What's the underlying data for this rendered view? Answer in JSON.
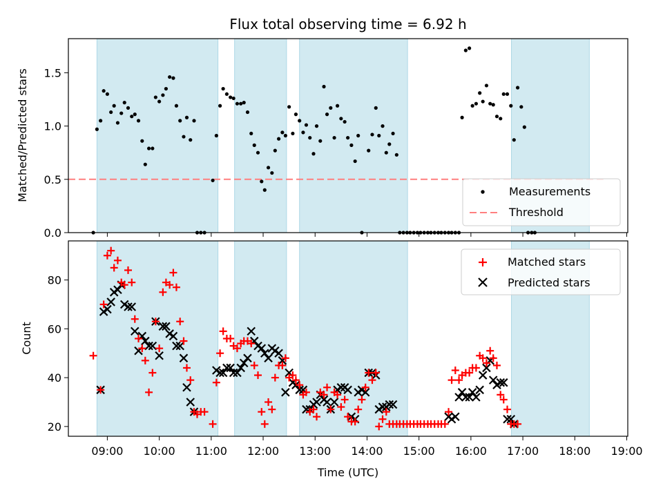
{
  "chart_data": {
    "title": "Flux total observing time = 6.92 h",
    "xlabel": "Time (UTC)",
    "x_unit": "hours UTC (decimal)",
    "xlim": [
      8.25,
      19.02
    ],
    "x_tick_labels": [
      "09:00",
      "10:00",
      "11:00",
      "12:00",
      "13:00",
      "14:00",
      "15:00",
      "16:00",
      "17:00",
      "18:00",
      "19:00"
    ],
    "observing_windows": [
      [
        8.8,
        11.13
      ],
      [
        11.45,
        12.45
      ],
      [
        12.7,
        14.78
      ],
      [
        16.78,
        18.28
      ]
    ],
    "colors": {
      "window": "#add8e6",
      "measure": "#000000",
      "threshold": "#ff7f7f",
      "matched": "#ff0000",
      "predicted": "#000000"
    },
    "top": {
      "type": "scatter",
      "ylabel": "Matched/Predicted stars",
      "ylim": [
        0,
        1.82
      ],
      "y_ticks": [
        "0.0",
        "0.5",
        "1.0",
        "1.5"
      ],
      "threshold": {
        "value": 0.5,
        "x_range": [
          8.25,
          18.55
        ]
      },
      "legend": [
        "Measurements",
        "Threshold"
      ],
      "measurements": [
        [
          8.73,
          0.0
        ],
        [
          8.8,
          0.97
        ],
        [
          8.87,
          1.05
        ],
        [
          8.93,
          1.33
        ],
        [
          9.0,
          1.3
        ],
        [
          9.07,
          1.13
        ],
        [
          9.13,
          1.19
        ],
        [
          9.2,
          1.03
        ],
        [
          9.27,
          1.12
        ],
        [
          9.33,
          1.22
        ],
        [
          9.4,
          1.17
        ],
        [
          9.47,
          1.09
        ],
        [
          9.53,
          1.11
        ],
        [
          9.6,
          1.05
        ],
        [
          9.67,
          0.86
        ],
        [
          9.73,
          0.64
        ],
        [
          9.8,
          0.79
        ],
        [
          9.87,
          0.79
        ],
        [
          9.93,
          1.27
        ],
        [
          10.0,
          1.23
        ],
        [
          10.07,
          1.29
        ],
        [
          10.13,
          1.35
        ],
        [
          10.2,
          1.46
        ],
        [
          10.27,
          1.45
        ],
        [
          10.33,
          1.19
        ],
        [
          10.4,
          1.05
        ],
        [
          10.47,
          0.9
        ],
        [
          10.53,
          1.08
        ],
        [
          10.6,
          0.87
        ],
        [
          10.67,
          1.05
        ],
        [
          10.73,
          0.0
        ],
        [
          10.8,
          0.0
        ],
        [
          10.87,
          0.0
        ],
        [
          11.03,
          0.49
        ],
        [
          11.1,
          0.91
        ],
        [
          11.17,
          1.19
        ],
        [
          11.23,
          1.35
        ],
        [
          11.3,
          1.3
        ],
        [
          11.37,
          1.27
        ],
        [
          11.43,
          1.26
        ],
        [
          11.5,
          1.21
        ],
        [
          11.57,
          1.21
        ],
        [
          11.63,
          1.22
        ],
        [
          11.7,
          1.13
        ],
        [
          11.77,
          0.93
        ],
        [
          11.83,
          0.82
        ],
        [
          11.9,
          0.75
        ],
        [
          11.97,
          0.48
        ],
        [
          12.03,
          0.4
        ],
        [
          12.1,
          0.61
        ],
        [
          12.17,
          0.56
        ],
        [
          12.23,
          0.77
        ],
        [
          12.3,
          0.88
        ],
        [
          12.37,
          0.94
        ],
        [
          12.43,
          0.91
        ],
        [
          12.5,
          1.18
        ],
        [
          12.57,
          0.93
        ],
        [
          12.63,
          1.11
        ],
        [
          12.7,
          1.05
        ],
        [
          12.77,
          0.94
        ],
        [
          12.83,
          1.01
        ],
        [
          12.9,
          0.89
        ],
        [
          12.97,
          0.74
        ],
        [
          13.03,
          1.0
        ],
        [
          13.1,
          0.86
        ],
        [
          13.17,
          1.37
        ],
        [
          13.23,
          1.11
        ],
        [
          13.3,
          1.17
        ],
        [
          13.37,
          0.89
        ],
        [
          13.43,
          1.19
        ],
        [
          13.5,
          1.07
        ],
        [
          13.57,
          1.04
        ],
        [
          13.63,
          0.89
        ],
        [
          13.7,
          0.82
        ],
        [
          13.77,
          0.67
        ],
        [
          13.83,
          0.91
        ],
        [
          13.9,
          0.0
        ],
        [
          14.03,
          0.77
        ],
        [
          14.1,
          0.92
        ],
        [
          14.17,
          1.17
        ],
        [
          14.23,
          0.91
        ],
        [
          14.3,
          1.0
        ],
        [
          14.37,
          0.75
        ],
        [
          14.43,
          0.83
        ],
        [
          14.5,
          0.93
        ],
        [
          14.57,
          0.73
        ],
        [
          14.63,
          0.0
        ],
        [
          14.7,
          0.0
        ],
        [
          14.77,
          0.0
        ],
        [
          14.83,
          0.0
        ],
        [
          14.9,
          0.0
        ],
        [
          14.97,
          0.0
        ],
        [
          15.03,
          0.0
        ],
        [
          15.1,
          0.0
        ],
        [
          15.17,
          0.0
        ],
        [
          15.23,
          0.0
        ],
        [
          15.3,
          0.0
        ],
        [
          15.37,
          0.0
        ],
        [
          15.43,
          0.0
        ],
        [
          15.5,
          0.0
        ],
        [
          15.57,
          0.0
        ],
        [
          15.63,
          0.0
        ],
        [
          15.7,
          0.0
        ],
        [
          15.77,
          0.0
        ],
        [
          15.83,
          1.08
        ],
        [
          15.9,
          1.71
        ],
        [
          15.97,
          1.73
        ],
        [
          16.03,
          1.19
        ],
        [
          16.1,
          1.21
        ],
        [
          16.17,
          1.31
        ],
        [
          16.23,
          1.23
        ],
        [
          16.3,
          1.38
        ],
        [
          16.37,
          1.21
        ],
        [
          16.43,
          1.2
        ],
        [
          16.5,
          1.09
        ],
        [
          16.57,
          1.07
        ],
        [
          16.63,
          1.3
        ],
        [
          16.7,
          1.3
        ],
        [
          16.77,
          1.19
        ],
        [
          16.83,
          0.87
        ],
        [
          16.9,
          1.36
        ],
        [
          16.97,
          1.18
        ],
        [
          17.03,
          0.99
        ],
        [
          17.1,
          0.0
        ],
        [
          17.17,
          0.0
        ],
        [
          17.23,
          0.0
        ]
      ]
    },
    "bottom": {
      "type": "scatter",
      "ylabel": "Count",
      "ylim": [
        16,
        96
      ],
      "y_ticks": [
        "20",
        "40",
        "60",
        "80"
      ],
      "legend": [
        "Matched stars",
        "Predicted stars"
      ],
      "matched": [
        [
          8.73,
          49
        ],
        [
          8.87,
          35
        ],
        [
          8.93,
          70
        ],
        [
          9.0,
          90
        ],
        [
          9.07,
          92
        ],
        [
          9.13,
          85
        ],
        [
          9.2,
          88
        ],
        [
          9.27,
          79
        ],
        [
          9.33,
          78
        ],
        [
          9.4,
          84
        ],
        [
          9.47,
          79
        ],
        [
          9.53,
          64
        ],
        [
          9.6,
          56
        ],
        [
          9.67,
          52
        ],
        [
          9.73,
          47
        ],
        [
          9.8,
          34
        ],
        [
          9.87,
          42
        ],
        [
          9.93,
          63
        ],
        [
          10.0,
          52
        ],
        [
          10.07,
          75
        ],
        [
          10.13,
          79
        ],
        [
          10.2,
          78
        ],
        [
          10.27,
          83
        ],
        [
          10.33,
          77
        ],
        [
          10.4,
          63
        ],
        [
          10.47,
          55
        ],
        [
          10.53,
          44
        ],
        [
          10.6,
          39
        ],
        [
          10.67,
          26
        ],
        [
          10.73,
          25
        ],
        [
          10.8,
          26
        ],
        [
          10.87,
          26
        ],
        [
          11.03,
          21
        ],
        [
          11.1,
          38
        ],
        [
          11.17,
          50
        ],
        [
          11.23,
          59
        ],
        [
          11.3,
          56
        ],
        [
          11.37,
          56
        ],
        [
          11.43,
          53
        ],
        [
          11.5,
          52
        ],
        [
          11.57,
          54
        ],
        [
          11.63,
          55
        ],
        [
          11.7,
          55
        ],
        [
          11.77,
          54
        ],
        [
          11.83,
          45
        ],
        [
          11.9,
          41
        ],
        [
          11.97,
          26
        ],
        [
          12.03,
          21
        ],
        [
          12.1,
          30
        ],
        [
          12.17,
          27
        ],
        [
          12.23,
          40
        ],
        [
          12.3,
          45
        ],
        [
          12.37,
          45
        ],
        [
          12.43,
          48
        ],
        [
          12.5,
          40
        ],
        [
          12.57,
          41
        ],
        [
          12.63,
          39
        ],
        [
          12.7,
          37
        ],
        [
          12.77,
          33
        ],
        [
          12.83,
          34
        ],
        [
          12.9,
          26
        ],
        [
          12.97,
          27
        ],
        [
          13.03,
          24
        ],
        [
          13.1,
          34
        ],
        [
          13.17,
          33
        ],
        [
          13.23,
          36
        ],
        [
          13.3,
          27
        ],
        [
          13.37,
          34
        ],
        [
          13.43,
          33
        ],
        [
          13.5,
          28
        ],
        [
          13.57,
          31
        ],
        [
          13.63,
          24
        ],
        [
          13.7,
          22
        ],
        [
          13.77,
          22
        ],
        [
          13.83,
          27
        ],
        [
          13.9,
          31
        ],
        [
          13.97,
          36
        ],
        [
          14.03,
          42
        ],
        [
          14.1,
          39
        ],
        [
          14.17,
          42
        ],
        [
          14.23,
          20
        ],
        [
          14.3,
          23
        ],
        [
          14.37,
          26
        ],
        [
          14.43,
          21
        ],
        [
          14.5,
          21
        ],
        [
          14.57,
          21
        ],
        [
          14.63,
          21
        ],
        [
          14.7,
          21
        ],
        [
          14.77,
          21
        ],
        [
          14.83,
          21
        ],
        [
          14.9,
          21
        ],
        [
          14.97,
          21
        ],
        [
          15.03,
          21
        ],
        [
          15.1,
          21
        ],
        [
          15.17,
          21
        ],
        [
          15.23,
          21
        ],
        [
          15.3,
          21
        ],
        [
          15.37,
          21
        ],
        [
          15.43,
          21
        ],
        [
          15.5,
          21
        ],
        [
          15.57,
          26
        ],
        [
          15.63,
          39
        ],
        [
          15.7,
          43
        ],
        [
          15.77,
          39
        ],
        [
          15.83,
          41
        ],
        [
          15.9,
          42
        ],
        [
          15.97,
          42
        ],
        [
          16.03,
          44
        ],
        [
          16.1,
          44
        ],
        [
          16.17,
          49
        ],
        [
          16.23,
          48
        ],
        [
          16.3,
          46
        ],
        [
          16.37,
          51
        ],
        [
          16.43,
          48
        ],
        [
          16.5,
          45
        ],
        [
          16.57,
          33
        ],
        [
          16.63,
          31
        ],
        [
          16.7,
          27
        ],
        [
          16.77,
          21
        ],
        [
          16.83,
          21
        ],
        [
          16.9,
          21
        ]
      ],
      "predicted": [
        [
          8.87,
          35
        ],
        [
          8.93,
          67
        ],
        [
          9.0,
          68
        ],
        [
          9.07,
          71
        ],
        [
          9.13,
          75
        ],
        [
          9.2,
          76
        ],
        [
          9.27,
          78
        ],
        [
          9.33,
          70
        ],
        [
          9.4,
          69
        ],
        [
          9.47,
          69
        ],
        [
          9.53,
          59
        ],
        [
          9.6,
          51
        ],
        [
          9.67,
          57
        ],
        [
          9.73,
          55
        ],
        [
          9.8,
          53
        ],
        [
          9.87,
          53
        ],
        [
          9.93,
          63
        ],
        [
          10.0,
          49
        ],
        [
          10.07,
          61
        ],
        [
          10.13,
          61
        ],
        [
          10.2,
          58
        ],
        [
          10.27,
          57
        ],
        [
          10.33,
          53
        ],
        [
          10.4,
          53
        ],
        [
          10.47,
          48
        ],
        [
          10.53,
          36
        ],
        [
          10.6,
          30
        ],
        [
          10.67,
          26
        ],
        [
          11.1,
          43
        ],
        [
          11.17,
          42
        ],
        [
          11.23,
          42
        ],
        [
          11.3,
          44
        ],
        [
          11.37,
          44
        ],
        [
          11.43,
          42
        ],
        [
          11.5,
          42
        ],
        [
          11.57,
          44
        ],
        [
          11.63,
          46
        ],
        [
          11.7,
          48
        ],
        [
          11.77,
          59
        ],
        [
          11.83,
          55
        ],
        [
          11.9,
          53
        ],
        [
          11.97,
          52
        ],
        [
          12.03,
          50
        ],
        [
          12.1,
          48
        ],
        [
          12.17,
          52
        ],
        [
          12.23,
          51
        ],
        [
          12.3,
          50
        ],
        [
          12.37,
          47
        ],
        [
          12.43,
          34
        ],
        [
          12.5,
          42
        ],
        [
          12.57,
          38
        ],
        [
          12.63,
          37
        ],
        [
          12.7,
          35
        ],
        [
          12.77,
          35
        ],
        [
          12.83,
          27
        ],
        [
          12.9,
          27
        ],
        [
          12.97,
          29
        ],
        [
          13.03,
          30
        ],
        [
          13.1,
          33
        ],
        [
          13.17,
          31
        ],
        [
          13.23,
          30
        ],
        [
          13.3,
          27
        ],
        [
          13.37,
          30
        ],
        [
          13.43,
          35
        ],
        [
          13.5,
          36
        ],
        [
          13.57,
          36
        ],
        [
          13.63,
          35
        ],
        [
          13.7,
          24
        ],
        [
          13.77,
          23
        ],
        [
          13.83,
          34
        ],
        [
          13.9,
          35
        ],
        [
          13.97,
          34
        ],
        [
          14.03,
          42
        ],
        [
          14.1,
          42
        ],
        [
          14.17,
          41
        ],
        [
          14.23,
          27
        ],
        [
          14.3,
          28
        ],
        [
          14.37,
          28
        ],
        [
          14.43,
          29
        ],
        [
          14.5,
          29
        ],
        [
          15.57,
          24
        ],
        [
          15.63,
          23
        ],
        [
          15.7,
          24
        ],
        [
          15.77,
          32
        ],
        [
          15.83,
          34
        ],
        [
          15.9,
          32
        ],
        [
          15.97,
          32
        ],
        [
          16.03,
          34
        ],
        [
          16.1,
          32
        ],
        [
          16.17,
          35
        ],
        [
          16.23,
          41
        ],
        [
          16.3,
          44
        ],
        [
          16.37,
          47
        ],
        [
          16.43,
          39
        ],
        [
          16.5,
          37
        ],
        [
          16.57,
          38
        ],
        [
          16.63,
          38
        ],
        [
          16.7,
          23
        ],
        [
          16.77,
          23
        ],
        [
          16.83,
          21
        ]
      ]
    }
  }
}
